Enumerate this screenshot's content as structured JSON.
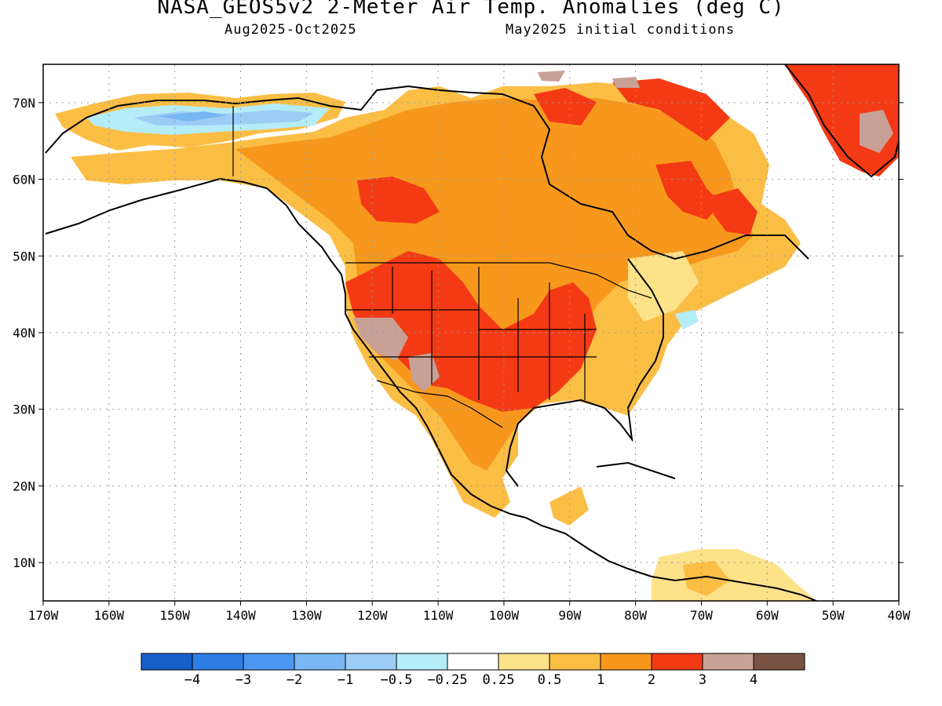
{
  "header": {
    "title": "NASA_GEOS5v2 2-Meter Air Temp. Anomalies (deg C)",
    "subtitle_left": "Aug2025-Oct2025",
    "subtitle_right": "May2025 initial conditions"
  },
  "map": {
    "lon_range": [
      -170,
      -40
    ],
    "lat_range": [
      5,
      75
    ],
    "lon_labels": [
      "170W",
      "160W",
      "150W",
      "140W",
      "130W",
      "120W",
      "110W",
      "100W",
      "90W",
      "80W",
      "70W",
      "60W",
      "50W",
      "40W"
    ],
    "lat_labels": [
      "10N",
      "20N",
      "30N",
      "40N",
      "50N",
      "60N",
      "70N"
    ],
    "grid": true
  },
  "colorbar": {
    "colors": [
      "#1560c8",
      "#2e7ee6",
      "#4b97f0",
      "#78b6f4",
      "#9ccdf6",
      "#b4ecf8",
      "#ffffff",
      "#fde28a",
      "#fbbe45",
      "#f7981c",
      "#f33a14",
      "#c8a095",
      "#7a5244"
    ],
    "labels": [
      "−4",
      "−3",
      "−2",
      "−1",
      "−0.5",
      "−0.25",
      "0.25",
      "0.5",
      "1",
      "2",
      "3",
      "4"
    ]
  }
}
